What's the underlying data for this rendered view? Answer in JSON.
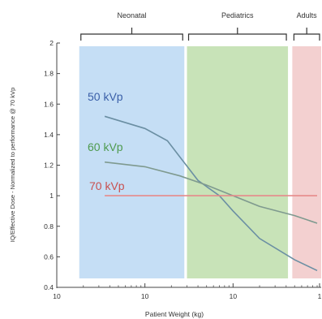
{
  "chart_data": {
    "type": "line",
    "xlabel": "Patient Weight (kg)",
    "ylabel": "IQ/Effective Dose - Normalized to performance @ 70 kVp",
    "xscale": "log",
    "xlim": [
      1,
      1000
    ],
    "ylim": [
      0.4,
      2.0
    ],
    "x_tick_values": [
      1,
      10,
      100,
      1000
    ],
    "x_tick_labels": [
      "10",
      "10",
      "10",
      "1"
    ],
    "y_ticks": [
      "0.4",
      "0.6",
      "0.8",
      "1",
      "1.2",
      "1.4",
      "1.6",
      "1.8",
      "2"
    ],
    "grid": false,
    "regions": [
      {
        "label": "Neonatal",
        "x_start": 1.8,
        "x_end": 28,
        "color": "#c5def5"
      },
      {
        "label": "Pediatrics",
        "x_start": 30,
        "x_end": 420,
        "color": "#c8e3b8"
      },
      {
        "label": "Adults",
        "x_start": 470,
        "x_end": 1000,
        "color": "#f3d0d0"
      }
    ],
    "series": [
      {
        "name": "50 kVp",
        "color": "#6b8fa3",
        "label_color": "#3a5fa8",
        "points": [
          [
            3.5,
            1.52
          ],
          [
            10,
            1.44
          ],
          [
            18,
            1.36
          ],
          [
            26,
            1.24
          ],
          [
            40,
            1.1
          ],
          [
            70,
            1.0
          ],
          [
            100,
            0.9
          ],
          [
            200,
            0.72
          ],
          [
            500,
            0.58
          ],
          [
            900,
            0.51
          ]
        ]
      },
      {
        "name": "60 kVp",
        "color": "#7f9a8f",
        "label_color": "#4e9a4e",
        "points": [
          [
            3.5,
            1.22
          ],
          [
            10,
            1.19
          ],
          [
            25,
            1.13
          ],
          [
            50,
            1.07
          ],
          [
            100,
            1.0
          ],
          [
            200,
            0.93
          ],
          [
            500,
            0.87
          ],
          [
            900,
            0.82
          ]
        ]
      },
      {
        "name": "70 kVp",
        "color": "#e68a8a",
        "label_color": "#c85050",
        "points": [
          [
            3.5,
            1.0
          ],
          [
            900,
            1.0
          ]
        ]
      }
    ]
  }
}
